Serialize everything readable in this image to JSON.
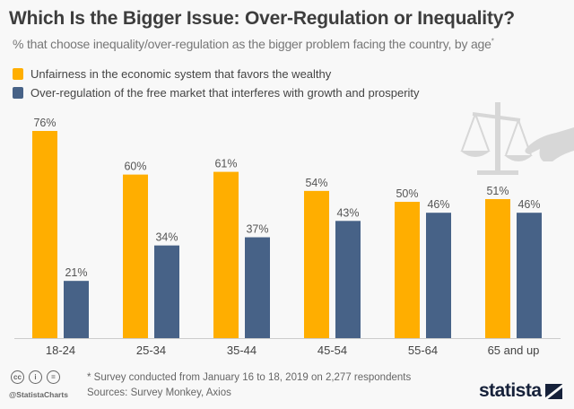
{
  "header": {
    "title": "Which Is the Bigger Issue: Over-Regulation or Inequality?",
    "subtitle": "% that choose inequality/over-regulation as the bigger problem facing the country, by age",
    "subtitle_marker": "*"
  },
  "footer": {
    "note": "* Survey conducted from January 16 to 18, 2019 on 2,277 respondents",
    "sources": "Sources: Survey Monkey, Axios",
    "handle": "@StatistaCharts",
    "brand": "statista",
    "license_icons": [
      "cc",
      "by",
      "nd"
    ]
  },
  "colors": {
    "series1": "#ffae00",
    "series2": "#476287",
    "label_text": "#555555",
    "axis": "#cccccc",
    "illustration": "#d7d7d7"
  },
  "illustration": "scales-of-justice-with-hand",
  "chart_data": {
    "type": "bar",
    "title": "Which Is the Bigger Issue: Over-Regulation or Inequality?",
    "subtitle": "% that choose inequality/over-regulation as the bigger problem facing the country, by age*",
    "xlabel": "",
    "ylabel": "",
    "ylim": [
      0,
      80
    ],
    "grid": false,
    "legend_position": "top-left",
    "categories": [
      "18-24",
      "25-34",
      "35-44",
      "45-54",
      "55-64",
      "65 and up"
    ],
    "series": [
      {
        "name": "Unfairness in the economic system that favors the wealthy",
        "values": [
          76,
          60,
          61,
          54,
          50,
          51
        ],
        "labels": [
          "76%",
          "60%",
          "61%",
          "54%",
          "50%",
          "51%"
        ]
      },
      {
        "name": "Over-regulation of the free market that interferes with growth and prosperity",
        "values": [
          21,
          34,
          37,
          43,
          46,
          46
        ],
        "labels": [
          "21%",
          "34%",
          "37%",
          "43%",
          "46%",
          "46%"
        ]
      }
    ]
  }
}
